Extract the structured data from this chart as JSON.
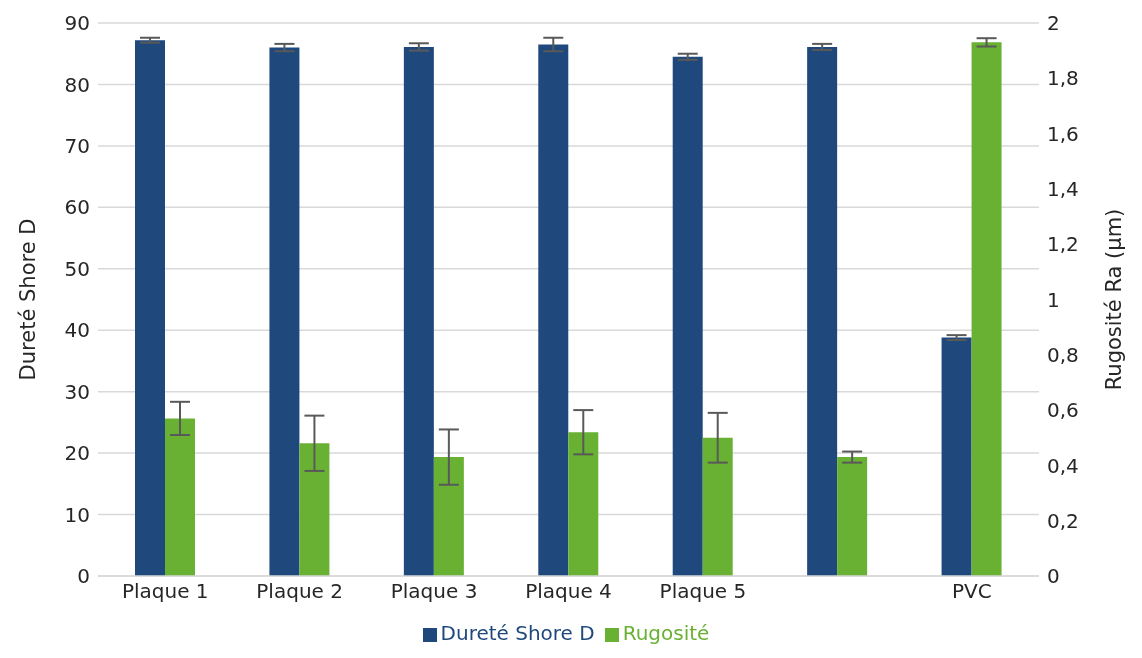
{
  "chart_data": {
    "type": "bar",
    "ylabel": "Dureté Shore D",
    "y2label": "Rugosité Ra (µm)",
    "categories": [
      "Plaque 1",
      "Plaque 2",
      "Plaque 3",
      "Plaque 4",
      "Plaque 5",
      null,
      "PVC"
    ],
    "series": [
      {
        "name": "Dureté Shore D",
        "color": "#1f497d",
        "values": [
          87.2,
          86.0,
          86.1,
          86.5,
          84.5,
          86.1,
          38.8
        ],
        "errors": [
          0.4,
          0.6,
          0.6,
          1.1,
          0.5,
          0.5,
          0.4
        ]
      },
      {
        "name": "Rugosité",
        "color": "#69b133",
        "axis": "y2",
        "values": [
          0.57,
          0.48,
          0.43,
          0.52,
          0.5,
          0.43,
          1.93
        ],
        "errors": [
          0.06,
          0.1,
          0.1,
          0.08,
          0.09,
          0.02,
          0.015
        ]
      }
    ],
    "ylim": [
      0,
      90
    ],
    "yticks": [
      0,
      10,
      20,
      30,
      40,
      50,
      60,
      70,
      80,
      90
    ],
    "y2lim": [
      0,
      2
    ],
    "y2ticks": [
      0,
      {
        "value": 0.2,
        "label": "0,2"
      },
      {
        "value": 0.4,
        "label": "0,4"
      },
      {
        "value": 0.6,
        "label": "0,6"
      },
      {
        "value": 0.8,
        "label": "0,8"
      },
      1,
      {
        "value": 1.2,
        "label": "1,2"
      },
      {
        "value": 1.4,
        "label": "1,4"
      },
      {
        "value": 1.6,
        "label": "1,6"
      },
      {
        "value": 1.8,
        "label": "1,8"
      },
      2
    ],
    "grid": "y",
    "legend": "bottom"
  }
}
